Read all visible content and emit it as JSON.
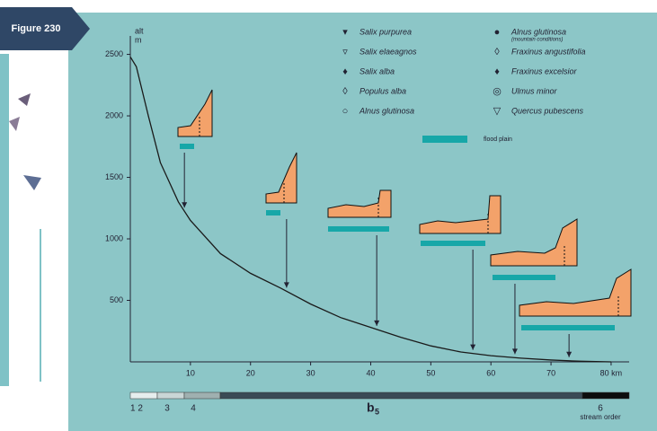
{
  "figure_label": "Figure 230",
  "chart_data": {
    "type": "line",
    "y_label": "alt",
    "y_unit": "m",
    "x": [
      0,
      1,
      2,
      3,
      5,
      8,
      10,
      15,
      20,
      25,
      30,
      35,
      40,
      45,
      50,
      55,
      60,
      65,
      70,
      75,
      80
    ],
    "values": [
      2480,
      2400,
      2200,
      2000,
      1620,
      1300,
      1150,
      880,
      720,
      600,
      470,
      360,
      280,
      200,
      130,
      80,
      50,
      30,
      15,
      5,
      0
    ],
    "color": "#1a1a1a",
    "xlim": [
      0,
      83
    ],
    "ylim": [
      0,
      2650
    ],
    "xticks": [
      10,
      20,
      30,
      40,
      50,
      60,
      70,
      {
        "value": 80,
        "label": "80 km"
      }
    ],
    "yticks": [
      500,
      1000,
      1500,
      2000,
      2500
    ],
    "legend": [
      {
        "name": "Salix purpurea"
      },
      {
        "name": "Salix elaeagnos"
      },
      {
        "name": "Salix alba"
      },
      {
        "name": "Populus alba"
      },
      {
        "name": "Alnus glutinosa"
      },
      {
        "name": "Alnus glutinosa",
        "note": "(mountain conditions)"
      },
      {
        "name": "Fraxinus angustifolia"
      },
      {
        "name": "Fraxinus excelsior"
      },
      {
        "name": "Ulmus minor"
      },
      {
        "name": "Quercus pubescens"
      }
    ],
    "flood_plain_label": "flood plain",
    "stream_order": {
      "labels": [
        "1 2",
        "3",
        "4",
        "6"
      ],
      "main": "b",
      "main_sub": "5",
      "caption": "stream order"
    }
  }
}
